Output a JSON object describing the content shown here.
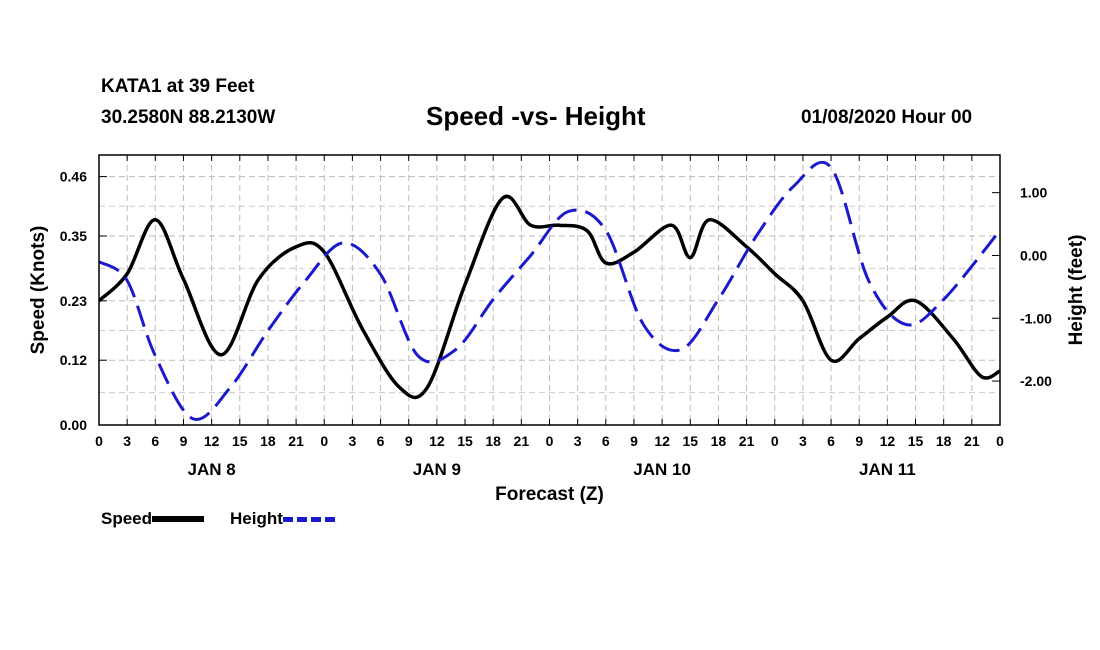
{
  "header": {
    "station": "KATA1 at 39 Feet",
    "coords": "30.2580N 88.2130W",
    "title": "Speed -vs- Height",
    "datetime": "01/08/2020 Hour 00"
  },
  "legend": {
    "speed_label": "Speed",
    "height_label": "Height"
  },
  "chart_data": {
    "type": "line",
    "title": "Speed -vs- Height",
    "xlabel": "Forecast (Z)",
    "ylabel_left": "Speed (Knots)",
    "ylabel_right": "Height (feet)",
    "x_range_hours": [
      0,
      96
    ],
    "x_tick_labels": [
      "0",
      "3",
      "6",
      "9",
      "12",
      "15",
      "18",
      "21",
      "0",
      "3",
      "6",
      "9",
      "12",
      "15",
      "18",
      "21",
      "0",
      "3",
      "6",
      "9",
      "12",
      "15",
      "18",
      "21",
      "0",
      "3",
      "6",
      "9",
      "12",
      "15",
      "18",
      "21",
      "0"
    ],
    "day_labels": [
      {
        "label": "JAN 8",
        "hour": 12
      },
      {
        "label": "JAN 9",
        "hour": 36
      },
      {
        "label": "JAN 10",
        "hour": 60
      },
      {
        "label": "JAN 11",
        "hour": 84
      }
    ],
    "ylim_left": [
      0,
      0.5
    ],
    "yticks_left": [
      "0.00",
      "0.12",
      "0.23",
      "0.35",
      "0.46"
    ],
    "ylim_right": [
      -2.7,
      1.6
    ],
    "yticks_right": [
      "1.00",
      "0.00",
      "-1.00",
      "-2.00"
    ],
    "series": [
      {
        "name": "Speed",
        "axis": "left",
        "color": "#000000",
        "style": "solid",
        "x": [
          0,
          3,
          6,
          9,
          13,
          17,
          21,
          24,
          28,
          32,
          35,
          39,
          43,
          46,
          49,
          52,
          54,
          57,
          61,
          63,
          65,
          69,
          72,
          75,
          78,
          81,
          84,
          87,
          91,
          94,
          96
        ],
        "y": [
          0.23,
          0.28,
          0.38,
          0.27,
          0.13,
          0.27,
          0.33,
          0.32,
          0.18,
          0.07,
          0.07,
          0.26,
          0.42,
          0.37,
          0.37,
          0.36,
          0.3,
          0.32,
          0.37,
          0.31,
          0.38,
          0.33,
          0.28,
          0.23,
          0.12,
          0.16,
          0.2,
          0.23,
          0.16,
          0.09,
          0.1
        ]
      },
      {
        "name": "Height",
        "axis": "right",
        "color": "#1a1acc",
        "style": "dashed",
        "x": [
          0,
          3,
          6,
          10,
          14,
          18,
          22,
          26,
          30,
          34,
          38,
          42,
          46,
          50,
          54,
          58,
          62,
          66,
          70,
          74,
          78,
          82,
          86,
          90,
          96
        ],
        "y": [
          -0.1,
          -0.4,
          -1.6,
          -2.6,
          -2.1,
          -1.2,
          -0.4,
          0.2,
          -0.3,
          -1.6,
          -1.5,
          -0.7,
          0.0,
          0.7,
          0.4,
          -1.1,
          -1.5,
          -0.7,
          0.3,
          1.1,
          1.4,
          -0.4,
          -1.1,
          -0.7,
          0.4
        ]
      }
    ]
  }
}
